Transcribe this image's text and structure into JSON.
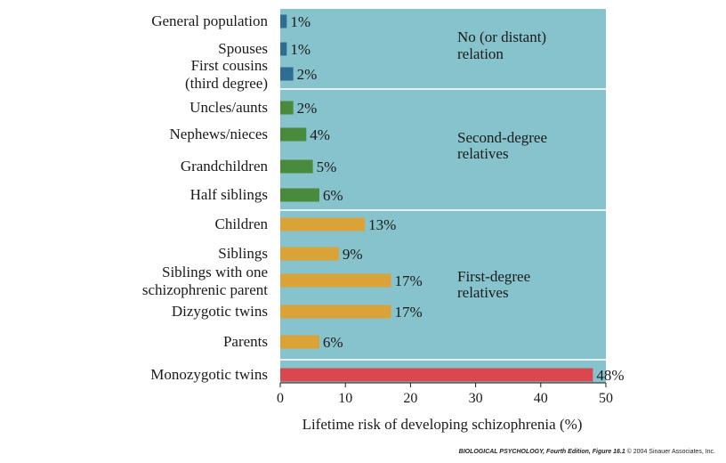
{
  "chart_data": {
    "type": "bar",
    "orientation": "horizontal",
    "xlabel": "Lifetime risk of developing schizophrenia (%)",
    "xlim": [
      0,
      50
    ],
    "xticks": [
      0,
      10,
      20,
      30,
      40,
      50
    ],
    "groups": [
      {
        "label": [
          "No (or distant)",
          "relation"
        ],
        "color": "#2e6e93",
        "bars": [
          {
            "label": [
              "General population"
            ],
            "value": 1,
            "value_label": "1%"
          },
          {
            "label": [
              "Spouses"
            ],
            "value": 1,
            "value_label": "1%"
          },
          {
            "label": [
              "First cousins",
              "(third degree)"
            ],
            "value": 2,
            "value_label": "2%"
          }
        ]
      },
      {
        "label": [
          "Second-degree",
          "relatives"
        ],
        "color": "#4a8a3c",
        "bars": [
          {
            "label": [
              "Uncles/aunts"
            ],
            "value": 2,
            "value_label": "2%"
          },
          {
            "label": [
              "Nephews/nieces"
            ],
            "value": 4,
            "value_label": "4%"
          },
          {
            "label": [
              "Grandchildren"
            ],
            "value": 5,
            "value_label": "5%"
          },
          {
            "label": [
              "Half siblings"
            ],
            "value": 6,
            "value_label": "6%"
          }
        ]
      },
      {
        "label": [
          "First-degree",
          "relatives"
        ],
        "color": "#dba237",
        "bars": [
          {
            "label": [
              "Children"
            ],
            "value": 13,
            "value_label": "13%"
          },
          {
            "label": [
              "Siblings"
            ],
            "value": 9,
            "value_label": "9%"
          },
          {
            "label": [
              "Siblings with one",
              "schizophrenic parent"
            ],
            "value": 17,
            "value_label": "17%"
          },
          {
            "label": [
              "Dizygotic twins"
            ],
            "value": 17,
            "value_label": "17%"
          },
          {
            "label": [
              "Parents"
            ],
            "value": 6,
            "value_label": "6%"
          }
        ]
      },
      {
        "label": [],
        "color": "#d9474f",
        "bars": [
          {
            "label": [
              "Monozygotic twins"
            ],
            "value": 48,
            "value_label": "48%"
          }
        ]
      }
    ]
  },
  "panel_color": "#86c3cc",
  "credit": {
    "title": "BIOLOGICAL PSYCHOLOGY, Fourth Edition, Figure 16.1",
    "rest": "© 2004 Sinauer Associates, Inc."
  }
}
